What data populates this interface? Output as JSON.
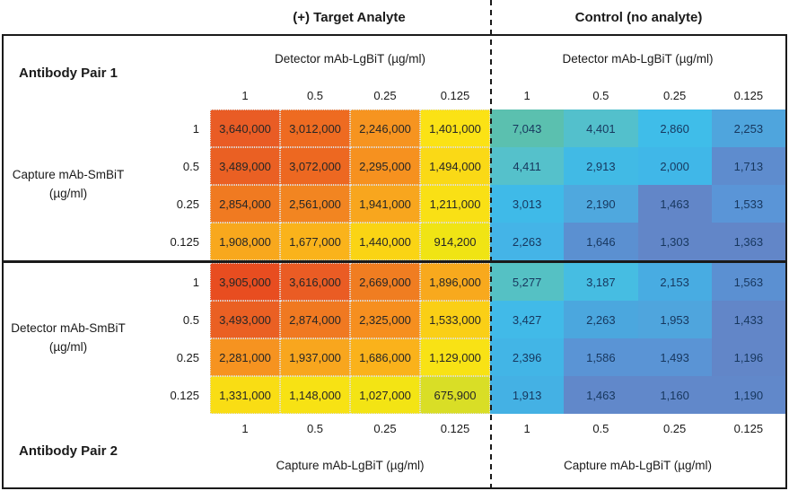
{
  "headers": {
    "target": "(+) Target Analyte",
    "control": "Control (no analyte)",
    "detector_lgbit": "Detector mAb-LgBiT (µg/ml)",
    "capture_lgbit": "Capture mAb-LgBiT (µg/ml)"
  },
  "pair1": {
    "label": "Antibody Pair 1",
    "row_axis_line1": "Capture mAb-SmBiT",
    "row_axis_line2": "(µg/ml)"
  },
  "pair2": {
    "label": "Antibody Pair 2",
    "row_axis_line1": "Detector mAb-SmBiT",
    "row_axis_line2": "(µg/ml)"
  },
  "concentrations": [
    "1",
    "0.5",
    "0.25",
    "0.125"
  ],
  "cells": {
    "p1t": [
      [
        {
          "v": "3,640,000",
          "c": "#E95C25"
        },
        {
          "v": "3,012,000",
          "c": "#EE6B21"
        },
        {
          "v": "2,246,000",
          "c": "#F69420"
        },
        {
          "v": "1,401,000",
          "c": "#FBE215"
        }
      ],
      [
        {
          "v": "3,489,000",
          "c": "#EA6023"
        },
        {
          "v": "3,072,000",
          "c": "#ED6821"
        },
        {
          "v": "2,295,000",
          "c": "#F6911F"
        },
        {
          "v": "1,494,000",
          "c": "#FAD916"
        }
      ],
      [
        {
          "v": "2,854,000",
          "c": "#F07A21"
        },
        {
          "v": "2,561,000",
          "c": "#F28521"
        },
        {
          "v": "1,941,000",
          "c": "#F8A61E"
        },
        {
          "v": "1,211,000",
          "c": "#F9E015"
        }
      ],
      [
        {
          "v": "1,908,000",
          "c": "#F8A81D"
        },
        {
          "v": "1,677,000",
          "c": "#FAB31B"
        },
        {
          "v": "1,440,000",
          "c": "#FAD414"
        },
        {
          "v": "914,200",
          "c": "#F0E414"
        }
      ]
    ],
    "p1c": [
      [
        {
          "v": "7,043",
          "c": "#5BC0AF"
        },
        {
          "v": "4,401",
          "c": "#53C0CC"
        },
        {
          "v": "2,860",
          "c": "#3FBDE9"
        },
        {
          "v": "2,253",
          "c": "#4FA5DD"
        }
      ],
      [
        {
          "v": "4,411",
          "c": "#55C1CB"
        },
        {
          "v": "2,913",
          "c": "#41BAE5"
        },
        {
          "v": "2,000",
          "c": "#40B7E8"
        },
        {
          "v": "1,713",
          "c": "#5E8CCE"
        }
      ],
      [
        {
          "v": "3,013",
          "c": "#3FBAE8"
        },
        {
          "v": "2,190",
          "c": "#4FA8DE"
        },
        {
          "v": "1,463",
          "c": "#6286C8"
        },
        {
          "v": "1,533",
          "c": "#5A95D7"
        }
      ],
      [
        {
          "v": "2,263",
          "c": "#44B4E7"
        },
        {
          "v": "1,646",
          "c": "#5B90D1"
        },
        {
          "v": "1,303",
          "c": "#6286C8"
        },
        {
          "v": "1,363",
          "c": "#6286C8"
        }
      ]
    ],
    "p2t": [
      [
        {
          "v": "3,905,000",
          "c": "#E84D20"
        },
        {
          "v": "3,616,000",
          "c": "#EA5C24"
        },
        {
          "v": "2,669,000",
          "c": "#F07D21"
        },
        {
          "v": "1,896,000",
          "c": "#F8A91D"
        }
      ],
      [
        {
          "v": "3,493,000",
          "c": "#EA6023"
        },
        {
          "v": "2,874,000",
          "c": "#F07921"
        },
        {
          "v": "2,325,000",
          "c": "#F68F1F"
        },
        {
          "v": "1,533,000",
          "c": "#FACF16"
        }
      ],
      [
        {
          "v": "2,281,000",
          "c": "#F69320"
        },
        {
          "v": "1,937,000",
          "c": "#F8A61E"
        },
        {
          "v": "1,686,000",
          "c": "#FAB21B"
        },
        {
          "v": "1,129,000",
          "c": "#F8E215"
        }
      ],
      [
        {
          "v": "1,331,000",
          "c": "#F9DD14"
        },
        {
          "v": "1,148,000",
          "c": "#F7E214"
        },
        {
          "v": "1,027,000",
          "c": "#F3E414"
        },
        {
          "v": "675,900",
          "c": "#D9DE26"
        }
      ]
    ],
    "p2c": [
      [
        {
          "v": "5,277",
          "c": "#55C1C4"
        },
        {
          "v": "3,187",
          "c": "#46BDE2"
        },
        {
          "v": "2,153",
          "c": "#48ACE2"
        },
        {
          "v": "1,563",
          "c": "#5B90D2"
        }
      ],
      [
        {
          "v": "3,427",
          "c": "#41BAE8"
        },
        {
          "v": "2,263",
          "c": "#4BA7DE"
        },
        {
          "v": "1,953",
          "c": "#4FA5DD"
        },
        {
          "v": "1,433",
          "c": "#6286C8"
        }
      ],
      [
        {
          "v": "2,396",
          "c": "#42B5E6"
        },
        {
          "v": "1,586",
          "c": "#5A94D5"
        },
        {
          "v": "1,493",
          "c": "#5A94D5"
        },
        {
          "v": "1,196",
          "c": "#6286C8"
        }
      ],
      [
        {
          "v": "1,913",
          "c": "#44B1E4"
        },
        {
          "v": "1,463",
          "c": "#6188CA"
        },
        {
          "v": "1,160",
          "c": "#6188CA"
        },
        {
          "v": "1,190",
          "c": "#6188CA"
        }
      ]
    ]
  },
  "chart_data": {
    "type": "heatmap",
    "title": "NanoBiT immunoassay antibody pair titration",
    "columns": [
      1,
      0.5,
      0.25,
      0.125
    ],
    "rows": [
      1,
      0.5,
      0.25,
      0.125
    ],
    "column_unit": "µg/ml",
    "row_unit": "µg/ml",
    "panels": [
      {
        "name": "Antibody Pair 1 — (+) Target Analyte",
        "row_axis": "Capture mAb-SmBiT (µg/ml)",
        "col_axis": "Detector mAb-LgBiT (µg/ml)",
        "values": [
          [
            3640000,
            3012000,
            2246000,
            1401000
          ],
          [
            3489000,
            3072000,
            2295000,
            1494000
          ],
          [
            2854000,
            2561000,
            1941000,
            1211000
          ],
          [
            1908000,
            1677000,
            1440000,
            914200
          ]
        ]
      },
      {
        "name": "Antibody Pair 1 — Control (no analyte)",
        "row_axis": "Capture mAb-SmBiT (µg/ml)",
        "col_axis": "Detector mAb-LgBiT (µg/ml)",
        "values": [
          [
            7043,
            4401,
            2860,
            2253
          ],
          [
            4411,
            2913,
            2000,
            1713
          ],
          [
            3013,
            2190,
            1463,
            1533
          ],
          [
            2263,
            1646,
            1303,
            1363
          ]
        ]
      },
      {
        "name": "Antibody Pair 2 — (+) Target Analyte",
        "row_axis": "Detector mAb-SmBiT (µg/ml)",
        "col_axis": "Capture mAb-LgBiT (µg/ml)",
        "values": [
          [
            3905000,
            3616000,
            2669000,
            1896000
          ],
          [
            3493000,
            2874000,
            2325000,
            1533000
          ],
          [
            2281000,
            1937000,
            1686000,
            1129000
          ],
          [
            1331000,
            1148000,
            1027000,
            675900
          ]
        ]
      },
      {
        "name": "Antibody Pair 2 — Control (no analyte)",
        "row_axis": "Detector mAb-SmBiT (µg/ml)",
        "col_axis": "Capture mAb-LgBiT (µg/ml)",
        "values": [
          [
            5277,
            3187,
            2153,
            1563
          ],
          [
            3427,
            2263,
            1953,
            1433
          ],
          [
            2396,
            1586,
            1493,
            1196
          ],
          [
            1913,
            1463,
            1160,
            1190
          ]
        ]
      }
    ],
    "layout_hints": {
      "target_colormap": "red-orange-yellow (high to low)",
      "control_colormap": "teal-cyan-slate-blue (high to low)",
      "grid": "dotted cell borders on target panels only"
    }
  }
}
